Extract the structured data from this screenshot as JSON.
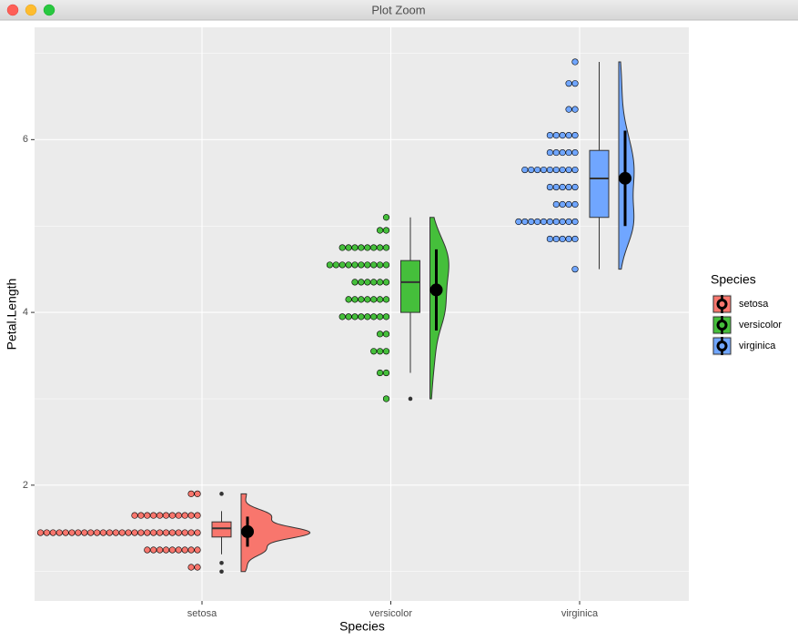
{
  "window": {
    "title": "Plot Zoom"
  },
  "chart_data": {
    "type": "raincloud",
    "x_label": "Species",
    "y_label": "Petal.Length",
    "categories": [
      "setosa",
      "versicolor",
      "virginica"
    ],
    "ylim": [
      0.66,
      7.3
    ],
    "yticks": [
      2,
      4,
      6
    ],
    "yminor_ticks": [
      1,
      3,
      5,
      7
    ],
    "grid": true,
    "legend_title": "Species",
    "legend_position": "right",
    "series": [
      {
        "name": "setosa",
        "color": "#F8766D",
        "dot_bins": [
          1.05,
          1.25,
          1.45,
          1.65,
          1.9
        ],
        "dot_counts": [
          2,
          9,
          26,
          11,
          2
        ],
        "box": {
          "lower_whisker": 1.2,
          "q1": 1.4,
          "median": 1.5,
          "q3": 1.575,
          "upper_whisker": 1.7,
          "outliers": [
            1.0,
            1.1,
            1.9
          ]
        },
        "mean": 1.462,
        "sd": 0.174
      },
      {
        "name": "versicolor",
        "color": "#45BF3B",
        "dot_bins": [
          3.0,
          3.3,
          3.55,
          3.75,
          3.95,
          4.15,
          4.35,
          4.55,
          4.75,
          4.95,
          5.1
        ],
        "dot_counts": [
          1,
          2,
          3,
          2,
          8,
          7,
          6,
          10,
          8,
          2,
          1
        ],
        "box": {
          "lower_whisker": 3.3,
          "q1": 4.0,
          "median": 4.35,
          "q3": 4.6,
          "upper_whisker": 5.1,
          "outliers": [
            3.0
          ]
        },
        "mean": 4.26,
        "sd": 0.47
      },
      {
        "name": "virginica",
        "color": "#70A6FF",
        "dot_bins": [
          4.5,
          4.85,
          5.05,
          5.25,
          5.45,
          5.65,
          5.85,
          6.05,
          6.35,
          6.65,
          6.9
        ],
        "dot_counts": [
          1,
          5,
          10,
          4,
          5,
          9,
          5,
          5,
          2,
          2,
          1
        ],
        "box": {
          "lower_whisker": 4.5,
          "q1": 5.1,
          "median": 5.55,
          "q3": 5.875,
          "upper_whisker": 6.9,
          "outliers": []
        },
        "mean": 5.552,
        "sd": 0.552
      }
    ]
  }
}
